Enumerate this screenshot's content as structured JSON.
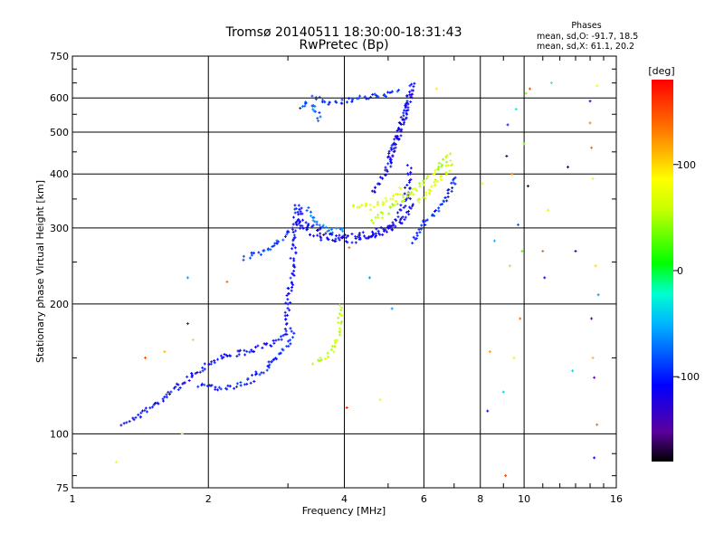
{
  "chart_data": {
    "type": "scatter",
    "title": "Tromsø 20140511 18:30:00-18:31:43",
    "subtitle": "RwPretec (Bp)",
    "xlabel": "Frequency [MHz]",
    "ylabel": "Stationary phase Virtual Height [km]",
    "x_scale": "log",
    "y_scale": "log",
    "xlim": [
      1,
      16
    ],
    "ylim": [
      75,
      750
    ],
    "x_ticks": [
      1,
      2,
      4,
      6,
      8,
      10,
      16
    ],
    "x_tick_labels": [
      "1",
      "2",
      "4",
      "6",
      "8",
      "10",
      "16"
    ],
    "y_ticks": [
      75,
      100,
      200,
      300,
      400,
      500,
      600,
      750
    ],
    "y_tick_labels": [
      "75",
      "100",
      "200",
      "300",
      "400",
      "500",
      "600",
      "750"
    ],
    "grid": true,
    "legend": {
      "title": "Phases",
      "lines": [
        "mean, sd,O: -91.7, 18.5",
        "mean, sd,X: 61.1, 20.2"
      ],
      "placement": "top-right"
    },
    "colorbar": {
      "label": "[deg]",
      "range": [
        -180,
        180
      ],
      "ticks": [
        100,
        0,
        -100
      ],
      "tick_labels": [
        "100",
        "0",
        "-100"
      ],
      "colormap": "rainbow"
    },
    "series": [
      {
        "name": "O",
        "phase_mean": -91.7,
        "traces": [
          {
            "x": [
              1.3,
              1.4,
              1.55,
              1.7,
              1.85,
              2.0,
              2.2,
              2.45,
              2.7,
              2.9,
              3.05
            ],
            "y": [
              106,
              110,
              118,
              128,
              137,
              146,
              152,
              155,
              160,
              168,
              178
            ],
            "phase": -110
          },
          {
            "x": [
              1.9,
              2.05,
              2.25,
              2.5,
              2.75,
              2.95,
              3.1
            ],
            "y": [
              130,
              127,
              128,
              134,
              145,
              158,
              172
            ],
            "phase": -100
          },
          {
            "x": [
              2.95,
              3.0,
              3.05,
              3.08,
              3.1,
              3.12,
              3.15,
              3.18,
              3.2
            ],
            "y": [
              180,
              200,
              225,
              255,
              285,
              315,
              340,
              330,
              300
            ],
            "phase": -105
          },
          {
            "x": [
              2.4,
              2.6,
              2.8,
              3.0,
              3.1
            ],
            "y": [
              255,
              262,
              275,
              290,
              300
            ],
            "phase": -95
          },
          {
            "x": [
              3.2,
              3.4,
              3.6,
              3.9,
              4.2,
              4.6,
              5.0,
              5.3,
              5.5,
              5.6
            ],
            "y": [
              310,
              300,
              293,
              288,
              287,
              290,
              300,
              320,
              360,
              420
            ],
            "phase": -110
          },
          {
            "x": [
              3.2,
              3.4,
              3.6,
              3.9,
              4.2,
              4.6,
              5.0,
              5.4,
              5.7
            ],
            "y": [
              300,
              292,
              285,
              281,
              281,
              285,
              295,
              315,
              350
            ],
            "phase": -115
          },
          {
            "x": [
              4.6,
              4.9,
              5.1,
              5.3,
              5.45,
              5.55,
              5.65
            ],
            "y": [
              360,
              400,
              450,
              500,
              550,
              600,
              640
            ],
            "phase": -110
          },
          {
            "x": [
              5.0,
              5.2,
              5.35,
              5.5,
              5.6,
              5.7
            ],
            "y": [
              420,
              470,
              520,
              570,
              610,
              650
            ],
            "phase": -115
          },
          {
            "x": [
              3.4,
              3.6,
              3.8,
              4.0,
              4.3,
              4.6,
              5.0,
              5.3
            ],
            "y": [
              600,
              590,
              585,
              590,
              600,
              605,
              615,
              625
            ],
            "phase": -95
          },
          {
            "x": [
              5.6,
              6.0,
              6.4,
              6.8,
              7.1
            ],
            "y": [
              280,
              305,
              330,
              360,
              400
            ],
            "phase": -100
          },
          {
            "x": [
              3.3,
              3.45,
              3.6,
              3.8,
              4.0
            ],
            "y": [
              330,
              310,
              300,
              296,
              300
            ],
            "phase": -70
          },
          {
            "x": [
              3.2,
              3.3,
              3.4,
              3.55
            ],
            "y": [
              570,
              590,
              575,
              530
            ],
            "phase": -80
          }
        ]
      },
      {
        "name": "X",
        "phase_mean": 61.1,
        "traces": [
          {
            "x": [
              3.45,
              3.6,
              3.75,
              3.85,
              3.9,
              3.95
            ],
            "y": [
              147,
              150,
              156,
              165,
              178,
              198
            ],
            "phase": 60
          },
          {
            "x": [
              4.6,
              5.0,
              5.5,
              6.0,
              6.5,
              6.9
            ],
            "y": [
              310,
              330,
              355,
              385,
              415,
              450
            ],
            "phase": 55
          },
          {
            "x": [
              5.8,
              6.2,
              6.6,
              7.0
            ],
            "y": [
              340,
              365,
              395,
              430
            ],
            "phase": 65
          },
          {
            "x": [
              4.2,
              4.6,
              5.0,
              5.4
            ],
            "y": [
              340,
              335,
              350,
              370
            ],
            "phase": 70
          }
        ]
      }
    ],
    "scattered_points": [
      {
        "x": 1.25,
        "y": 86,
        "phase": 80
      },
      {
        "x": 1.45,
        "y": 150,
        "phase": 150
      },
      {
        "x": 1.6,
        "y": 155,
        "phase": 110
      },
      {
        "x": 1.75,
        "y": 100,
        "phase": 90
      },
      {
        "x": 1.8,
        "y": 180,
        "phase": -150
      },
      {
        "x": 1.8,
        "y": 230,
        "phase": -60
      },
      {
        "x": 1.85,
        "y": 165,
        "phase": 100
      },
      {
        "x": 2.2,
        "y": 225,
        "phase": 140
      },
      {
        "x": 4.05,
        "y": 115,
        "phase": 170
      },
      {
        "x": 4.1,
        "y": 270,
        "phase": 140
      },
      {
        "x": 4.55,
        "y": 230,
        "phase": -60
      },
      {
        "x": 4.8,
        "y": 120,
        "phase": 80
      },
      {
        "x": 5.1,
        "y": 195,
        "phase": -60
      },
      {
        "x": 6.4,
        "y": 630,
        "phase": 95
      },
      {
        "x": 8.1,
        "y": 380,
        "phase": 80
      },
      {
        "x": 8.3,
        "y": 113,
        "phase": -110
      },
      {
        "x": 8.4,
        "y": 155,
        "phase": 120
      },
      {
        "x": 8.6,
        "y": 280,
        "phase": -50
      },
      {
        "x": 9.0,
        "y": 125,
        "phase": -40
      },
      {
        "x": 9.1,
        "y": 80,
        "phase": 160
      },
      {
        "x": 9.15,
        "y": 440,
        "phase": -165
      },
      {
        "x": 9.2,
        "y": 520,
        "phase": -100
      },
      {
        "x": 9.3,
        "y": 245,
        "phase": 45
      },
      {
        "x": 9.4,
        "y": 400,
        "phase": 125
      },
      {
        "x": 9.5,
        "y": 150,
        "phase": 90
      },
      {
        "x": 9.6,
        "y": 565,
        "phase": -30
      },
      {
        "x": 9.7,
        "y": 305,
        "phase": -80
      },
      {
        "x": 9.8,
        "y": 185,
        "phase": 140
      },
      {
        "x": 9.9,
        "y": 265,
        "phase": 30
      },
      {
        "x": 10.0,
        "y": 470,
        "phase": 40
      },
      {
        "x": 10.1,
        "y": 615,
        "phase": 35
      },
      {
        "x": 10.2,
        "y": 375,
        "phase": -170
      },
      {
        "x": 10.3,
        "y": 630,
        "phase": 150
      },
      {
        "x": 11.0,
        "y": 265,
        "phase": 140
      },
      {
        "x": 11.1,
        "y": 230,
        "phase": -110
      },
      {
        "x": 11.3,
        "y": 330,
        "phase": 70
      },
      {
        "x": 11.5,
        "y": 650,
        "phase": -20
      },
      {
        "x": 12.5,
        "y": 415,
        "phase": -165
      },
      {
        "x": 12.8,
        "y": 140,
        "phase": -40
      },
      {
        "x": 13.0,
        "y": 265,
        "phase": -130
      },
      {
        "x": 14.0,
        "y": 590,
        "phase": -110
      },
      {
        "x": 14.0,
        "y": 525,
        "phase": 130
      },
      {
        "x": 14.1,
        "y": 460,
        "phase": 140
      },
      {
        "x": 14.1,
        "y": 185,
        "phase": -155
      },
      {
        "x": 14.2,
        "y": 390,
        "phase": 90
      },
      {
        "x": 14.2,
        "y": 150,
        "phase": 110
      },
      {
        "x": 14.3,
        "y": 135,
        "phase": -150
      },
      {
        "x": 14.3,
        "y": 88,
        "phase": -110
      },
      {
        "x": 14.4,
        "y": 245,
        "phase": 100
      },
      {
        "x": 14.5,
        "y": 640,
        "phase": 80
      },
      {
        "x": 14.5,
        "y": 105,
        "phase": 140
      },
      {
        "x": 14.6,
        "y": 210,
        "phase": -60
      }
    ]
  }
}
